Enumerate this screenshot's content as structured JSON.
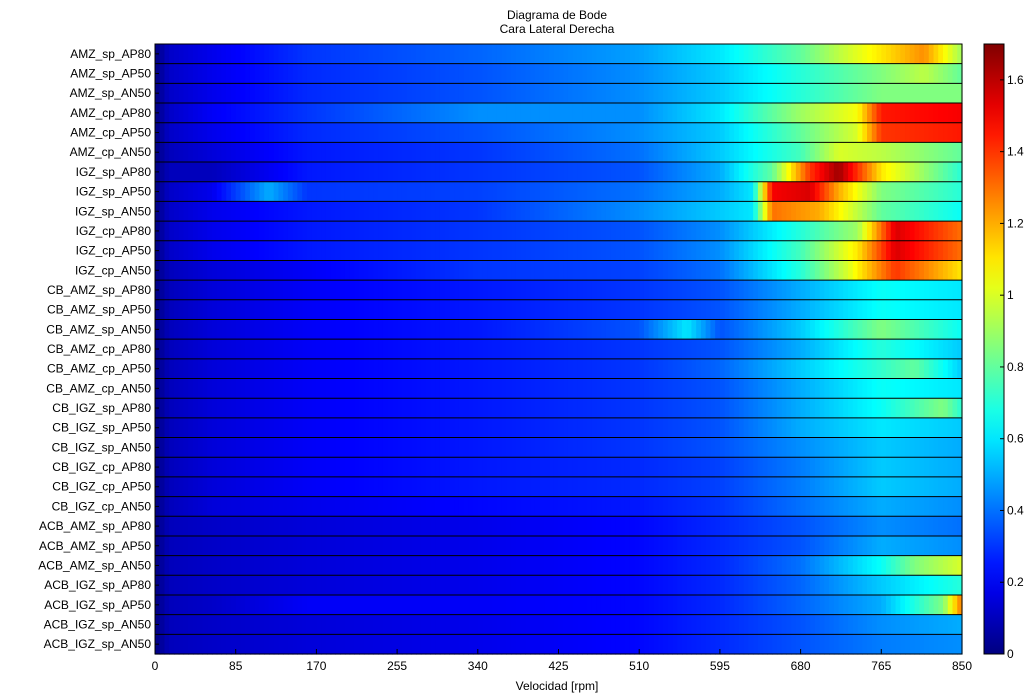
{
  "chart_data": {
    "type": "heatmap",
    "title": "Diagrama de Bode",
    "subtitle": "Cara Lateral Derecha",
    "xlabel": "Velocidad [rpm]",
    "ylabel": "",
    "xlim": [
      0,
      850
    ],
    "x_ticks": [
      0,
      85,
      170,
      255,
      340,
      425,
      510,
      595,
      680,
      765,
      850
    ],
    "colorbar": {
      "colormap": "jet",
      "range": [
        0,
        1.7
      ],
      "ticks": [
        0,
        0.2,
        0.4,
        0.6,
        0.8,
        1,
        1.2,
        1.4,
        1.6
      ],
      "tick_labels": [
        "0",
        "0.2",
        "0.4",
        "0.6",
        "0.8",
        "1",
        "1.2",
        "1.4",
        "1.6"
      ]
    },
    "grid": "horizontal row separators",
    "rows": [
      {
        "name": "AMZ_sp_AP80",
        "x": [
          0,
          15,
          60,
          160,
          340,
          510,
          595,
          680,
          720,
          765,
          810,
          850
        ],
        "values": [
          0,
          0.12,
          0.18,
          0.3,
          0.38,
          0.48,
          0.6,
          0.8,
          0.95,
          1.1,
          1.25,
          0.9
        ]
      },
      {
        "name": "AMZ_sp_AP50",
        "x": [
          0,
          15,
          60,
          160,
          340,
          510,
          595,
          680,
          765,
          810,
          850
        ],
        "values": [
          0,
          0.12,
          0.18,
          0.28,
          0.35,
          0.45,
          0.55,
          0.7,
          0.85,
          0.95,
          0.8
        ]
      },
      {
        "name": "AMZ_sp_AN50",
        "x": [
          0,
          15,
          60,
          160,
          340,
          510,
          595,
          680,
          765,
          850
        ],
        "values": [
          0,
          0.12,
          0.18,
          0.28,
          0.35,
          0.45,
          0.55,
          0.7,
          0.85,
          0.85
        ]
      },
      {
        "name": "AMZ_cp_AP80",
        "x": [
          0,
          15,
          60,
          160,
          340,
          510,
          595,
          680,
          740,
          765,
          850
        ],
        "values": [
          0,
          0.12,
          0.2,
          0.3,
          0.45,
          0.45,
          0.6,
          0.9,
          1.05,
          1.45,
          1.5
        ]
      },
      {
        "name": "AMZ_cp_AP50",
        "x": [
          0,
          15,
          60,
          160,
          340,
          510,
          595,
          680,
          740,
          765,
          850
        ],
        "values": [
          0,
          0.12,
          0.18,
          0.28,
          0.35,
          0.45,
          0.55,
          0.8,
          1.0,
          1.4,
          1.45
        ]
      },
      {
        "name": "AMZ_cp_AN50",
        "x": [
          0,
          15,
          60,
          160,
          340,
          510,
          595,
          680,
          720,
          765,
          850
        ],
        "values": [
          0,
          0.1,
          0.15,
          0.25,
          0.3,
          0.4,
          0.55,
          0.75,
          1.0,
          0.95,
          0.8
        ]
      },
      {
        "name": "IGZ_sp_AP80",
        "x": [
          0,
          15,
          60,
          160,
          340,
          510,
          595,
          650,
          690,
          720,
          765,
          850
        ],
        "values": [
          0,
          0.1,
          0.1,
          0.25,
          0.3,
          0.35,
          0.5,
          0.8,
          1.4,
          1.65,
          1.1,
          0.7
        ]
      },
      {
        "name": "IGZ_sp_AP50",
        "x": [
          0,
          15,
          60,
          120,
          160,
          340,
          510,
          595,
          630,
          650,
          690,
          720,
          765,
          850
        ],
        "values": [
          0,
          0.12,
          0.18,
          0.5,
          0.3,
          0.32,
          0.4,
          0.5,
          0.6,
          1.5,
          1.55,
          1.2,
          0.85,
          0.7
        ]
      },
      {
        "name": "IGZ_sp_AN50",
        "x": [
          0,
          15,
          60,
          160,
          340,
          510,
          595,
          630,
          650,
          700,
          765,
          850
        ],
        "values": [
          0,
          0.12,
          0.18,
          0.25,
          0.3,
          0.45,
          0.55,
          0.6,
          1.3,
          1.2,
          0.8,
          0.65
        ]
      },
      {
        "name": "IGZ_cp_AP80",
        "x": [
          0,
          15,
          60,
          160,
          340,
          510,
          595,
          680,
          740,
          780,
          850
        ],
        "values": [
          0,
          0.12,
          0.18,
          0.25,
          0.3,
          0.35,
          0.45,
          0.7,
          0.9,
          1.55,
          1.3
        ]
      },
      {
        "name": "IGZ_cp_AP50",
        "x": [
          0,
          15,
          60,
          160,
          340,
          510,
          595,
          680,
          740,
          780,
          850
        ],
        "values": [
          0,
          0.12,
          0.18,
          0.25,
          0.3,
          0.35,
          0.45,
          0.75,
          1.1,
          1.55,
          1.3
        ]
      },
      {
        "name": "IGZ_cp_AN50",
        "x": [
          0,
          15,
          60,
          160,
          340,
          510,
          595,
          680,
          730,
          780,
          850
        ],
        "values": [
          0,
          0.1,
          0.15,
          0.2,
          0.3,
          0.32,
          0.4,
          0.7,
          1.0,
          1.4,
          1.1
        ]
      },
      {
        "name": "CB_AMZ_sp_AP80",
        "x": [
          0,
          15,
          60,
          160,
          340,
          510,
          595,
          680,
          765,
          850
        ],
        "values": [
          0,
          0.1,
          0.15,
          0.2,
          0.25,
          0.3,
          0.35,
          0.5,
          0.65,
          0.6
        ]
      },
      {
        "name": "CB_AMZ_sp_AP50",
        "x": [
          0,
          15,
          60,
          160,
          340,
          510,
          595,
          680,
          765,
          850
        ],
        "values": [
          0,
          0.1,
          0.15,
          0.2,
          0.25,
          0.3,
          0.35,
          0.5,
          0.65,
          0.6
        ]
      },
      {
        "name": "CB_AMZ_sp_AN50",
        "x": [
          0,
          15,
          60,
          160,
          340,
          510,
          560,
          595,
          680,
          765,
          850
        ],
        "values": [
          0,
          0.1,
          0.15,
          0.2,
          0.25,
          0.35,
          0.6,
          0.35,
          0.55,
          0.85,
          0.65
        ]
      },
      {
        "name": "CB_AMZ_cp_AP80",
        "x": [
          0,
          15,
          60,
          160,
          340,
          510,
          595,
          680,
          765,
          850
        ],
        "values": [
          0,
          0.1,
          0.15,
          0.2,
          0.25,
          0.3,
          0.35,
          0.5,
          0.7,
          0.55
        ]
      },
      {
        "name": "CB_AMZ_cp_AP50",
        "x": [
          0,
          15,
          60,
          160,
          340,
          510,
          595,
          680,
          765,
          800,
          850
        ],
        "values": [
          0,
          0.1,
          0.15,
          0.2,
          0.25,
          0.3,
          0.38,
          0.55,
          0.72,
          0.8,
          0.55
        ]
      },
      {
        "name": "CB_AMZ_cp_AN50",
        "x": [
          0,
          15,
          60,
          160,
          340,
          510,
          595,
          680,
          765,
          850
        ],
        "values": [
          0,
          0.1,
          0.15,
          0.2,
          0.25,
          0.3,
          0.35,
          0.5,
          0.65,
          0.6
        ]
      },
      {
        "name": "CB_IGZ_sp_AP80",
        "x": [
          0,
          15,
          60,
          160,
          340,
          510,
          595,
          680,
          765,
          830,
          850
        ],
        "values": [
          0,
          0.1,
          0.15,
          0.2,
          0.25,
          0.3,
          0.35,
          0.5,
          0.65,
          0.85,
          0.7
        ]
      },
      {
        "name": "CB_IGZ_sp_AP50",
        "x": [
          0,
          15,
          60,
          160,
          340,
          510,
          595,
          680,
          765,
          850
        ],
        "values": [
          0,
          0.1,
          0.15,
          0.2,
          0.25,
          0.3,
          0.35,
          0.5,
          0.6,
          0.55
        ]
      },
      {
        "name": "CB_IGZ_sp_AN50",
        "x": [
          0,
          15,
          60,
          160,
          340,
          510,
          595,
          680,
          765,
          850
        ],
        "values": [
          0,
          0.1,
          0.15,
          0.2,
          0.25,
          0.3,
          0.35,
          0.45,
          0.55,
          0.5
        ]
      },
      {
        "name": "CB_IGZ_cp_AP80",
        "x": [
          0,
          15,
          60,
          160,
          340,
          510,
          595,
          680,
          765,
          850
        ],
        "values": [
          0,
          0.1,
          0.15,
          0.2,
          0.25,
          0.28,
          0.32,
          0.42,
          0.55,
          0.5
        ]
      },
      {
        "name": "CB_IGZ_cp_AP50",
        "x": [
          0,
          15,
          60,
          160,
          340,
          510,
          595,
          680,
          765,
          850
        ],
        "values": [
          0,
          0.1,
          0.15,
          0.2,
          0.25,
          0.28,
          0.32,
          0.42,
          0.55,
          0.5
        ]
      },
      {
        "name": "CB_IGZ_cp_AN50",
        "x": [
          0,
          15,
          60,
          160,
          340,
          510,
          595,
          680,
          765,
          850
        ],
        "values": [
          0,
          0.1,
          0.15,
          0.18,
          0.22,
          0.25,
          0.3,
          0.4,
          0.5,
          0.45
        ]
      },
      {
        "name": "ACB_AMZ_sp_AP80",
        "x": [
          0,
          15,
          60,
          160,
          340,
          510,
          595,
          680,
          765,
          850
        ],
        "values": [
          0,
          0.1,
          0.12,
          0.15,
          0.18,
          0.22,
          0.28,
          0.35,
          0.45,
          0.4
        ]
      },
      {
        "name": "ACB_AMZ_sp_AP50",
        "x": [
          0,
          15,
          60,
          160,
          340,
          510,
          595,
          680,
          765,
          850
        ],
        "values": [
          0,
          0.1,
          0.12,
          0.15,
          0.18,
          0.22,
          0.28,
          0.35,
          0.5,
          0.45
        ]
      },
      {
        "name": "ACB_AMZ_sp_AN50",
        "x": [
          0,
          15,
          60,
          160,
          340,
          510,
          595,
          680,
          765,
          800,
          850
        ],
        "values": [
          0,
          0.1,
          0.12,
          0.15,
          0.18,
          0.22,
          0.28,
          0.4,
          0.65,
          0.85,
          1.0
        ]
      },
      {
        "name": "ACB_IGZ_sp_AP80",
        "x": [
          0,
          15,
          60,
          160,
          340,
          510,
          595,
          680,
          765,
          850
        ],
        "values": [
          0,
          0.1,
          0.12,
          0.15,
          0.18,
          0.22,
          0.28,
          0.38,
          0.55,
          0.7
        ]
      },
      {
        "name": "ACB_IGZ_sp_AP50",
        "x": [
          0,
          15,
          60,
          160,
          340,
          510,
          595,
          680,
          765,
          830,
          850
        ],
        "values": [
          0,
          0.1,
          0.12,
          0.2,
          0.2,
          0.22,
          0.28,
          0.38,
          0.5,
          0.85,
          1.3
        ]
      },
      {
        "name": "ACB_IGZ_sp_AN50",
        "x": [
          0,
          15,
          60,
          160,
          340,
          510,
          595,
          680,
          765,
          850
        ],
        "values": [
          0,
          0.1,
          0.12,
          0.15,
          0.18,
          0.22,
          0.28,
          0.35,
          0.45,
          0.5
        ]
      },
      {
        "name": "ACB_IGZ_sp_AN50",
        "x": [
          0,
          15,
          60,
          160,
          340,
          510,
          595,
          680,
          765,
          850
        ],
        "values": [
          0,
          0.1,
          0.12,
          0.15,
          0.18,
          0.22,
          0.28,
          0.35,
          0.42,
          0.45
        ]
      }
    ]
  }
}
